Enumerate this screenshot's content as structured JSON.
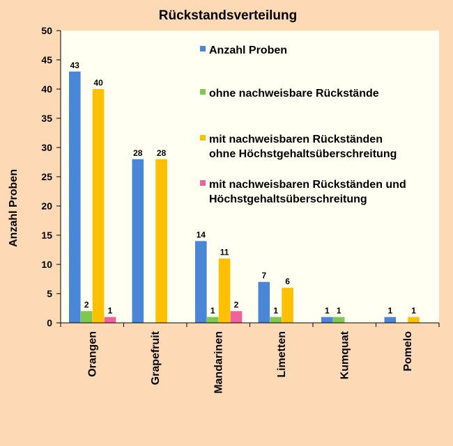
{
  "chart_data": {
    "type": "bar",
    "title": "Rückstandsverteilung",
    "ylabel": "Anzahl Proben",
    "xlabel": "",
    "ylim": [
      0,
      50
    ],
    "yticks": [
      0,
      5,
      10,
      15,
      20,
      25,
      30,
      35,
      40,
      45,
      50
    ],
    "categories": [
      "Orangen",
      "Grapefruit",
      "Mandarinen",
      "Limetten",
      "Kumquat",
      "Pomelo"
    ],
    "legend_position": "top-right inside plot",
    "grid": false,
    "series": [
      {
        "name": "Anzahl Proben",
        "color": "#4a86d8",
        "values": [
          43,
          28,
          14,
          7,
          1,
          1
        ]
      },
      {
        "name": "ohne nachweisbare Rückstände",
        "color": "#7ec850",
        "values": [
          2,
          0,
          1,
          1,
          1,
          0
        ]
      },
      {
        "name": "mit nachweisbaren Rückständen ohne Höchstgehaltsüberschreitung",
        "name_lines": [
          "mit nachweisbaren Rückständen",
          "ohne Höchstgehaltsüberschreitung"
        ],
        "color": "#ffc000",
        "values": [
          40,
          28,
          11,
          6,
          0,
          1
        ]
      },
      {
        "name": "mit nachweisbaren Rückständen und Höchstgehaltsüberschreitung",
        "name_lines": [
          "mit nachweisbaren Rückständen und",
          "Höchstgehaltsüberschreitung"
        ],
        "color": "#f0609a",
        "values": [
          1,
          0,
          2,
          0,
          0,
          0
        ]
      }
    ]
  }
}
